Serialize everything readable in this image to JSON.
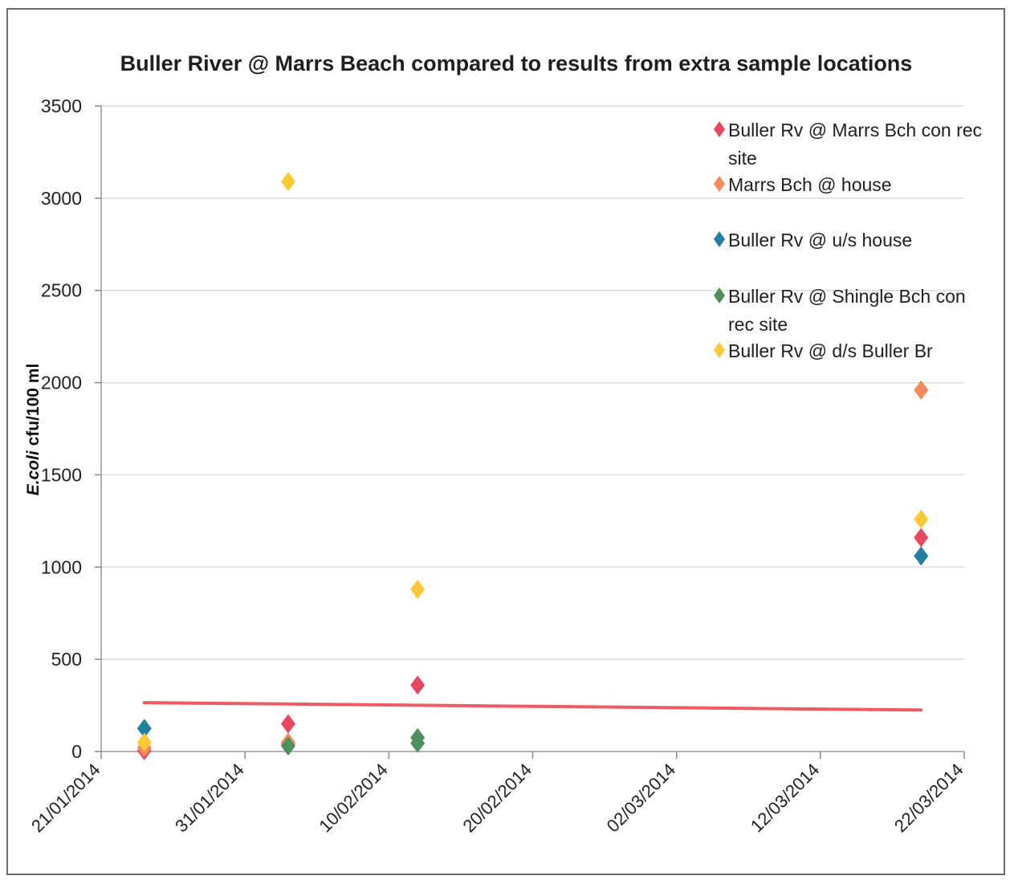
{
  "chart_data": {
    "type": "scatter",
    "title": "Buller River @ Marrs Beach compared to results from extra sample locations",
    "ylabel_italic": "E.coli",
    "ylabel_rest": " cfu/100 ml",
    "ylim": [
      0,
      3500
    ],
    "yticks": [
      "0",
      "500",
      "1000",
      "1500",
      "2000",
      "2500",
      "3000",
      "3500"
    ],
    "xlim": [
      "2014-01-21",
      "2014-03-22"
    ],
    "xticks": [
      "21/01/2014",
      "31/01/2014",
      "10/02/2014",
      "20/02/2014",
      "02/03/2014",
      "12/03/2014",
      "22/03/2014"
    ],
    "grid": "horizontal",
    "legend_position": "top-right",
    "series": [
      {
        "name": "Buller Rv @ Marrs Bch con rec site",
        "color": "#e8475f",
        "points": [
          {
            "x": "2014-01-24",
            "y": 5
          },
          {
            "x": "2014-02-03",
            "y": 150
          },
          {
            "x": "2014-02-03",
            "y": 40
          },
          {
            "x": "2014-02-12",
            "y": 360
          },
          {
            "x": "2014-03-19",
            "y": 1160
          }
        ]
      },
      {
        "name": "Marrs Bch @ house",
        "color": "#f58a5a",
        "points": [
          {
            "x": "2014-01-24",
            "y": 20
          },
          {
            "x": "2014-02-03",
            "y": 50
          },
          {
            "x": "2014-03-19",
            "y": 1960
          }
        ]
      },
      {
        "name": "Buller Rv @ u/s house",
        "color": "#2281a3",
        "points": [
          {
            "x": "2014-01-24",
            "y": 125
          },
          {
            "x": "2014-03-19",
            "y": 1060
          }
        ]
      },
      {
        "name": "Buller Rv @ Shingle Bch con rec site",
        "color": "#4e8f5e",
        "points": [
          {
            "x": "2014-02-03",
            "y": 30
          },
          {
            "x": "2014-02-12",
            "y": 75
          },
          {
            "x": "2014-02-12",
            "y": 45
          }
        ]
      },
      {
        "name": "Buller Rv @ d/s Buller Br",
        "color": "#ffc836",
        "points": [
          {
            "x": "2014-01-24",
            "y": 50
          },
          {
            "x": "2014-02-03",
            "y": 3090
          },
          {
            "x": "2014-02-12",
            "y": 880
          },
          {
            "x": "2014-03-19",
            "y": 1260
          }
        ]
      }
    ],
    "trendline": {
      "color": "#ef5b62",
      "from": {
        "x": "2014-01-24",
        "y": 265
      },
      "to": {
        "x": "2014-03-19",
        "y": 225
      }
    }
  }
}
